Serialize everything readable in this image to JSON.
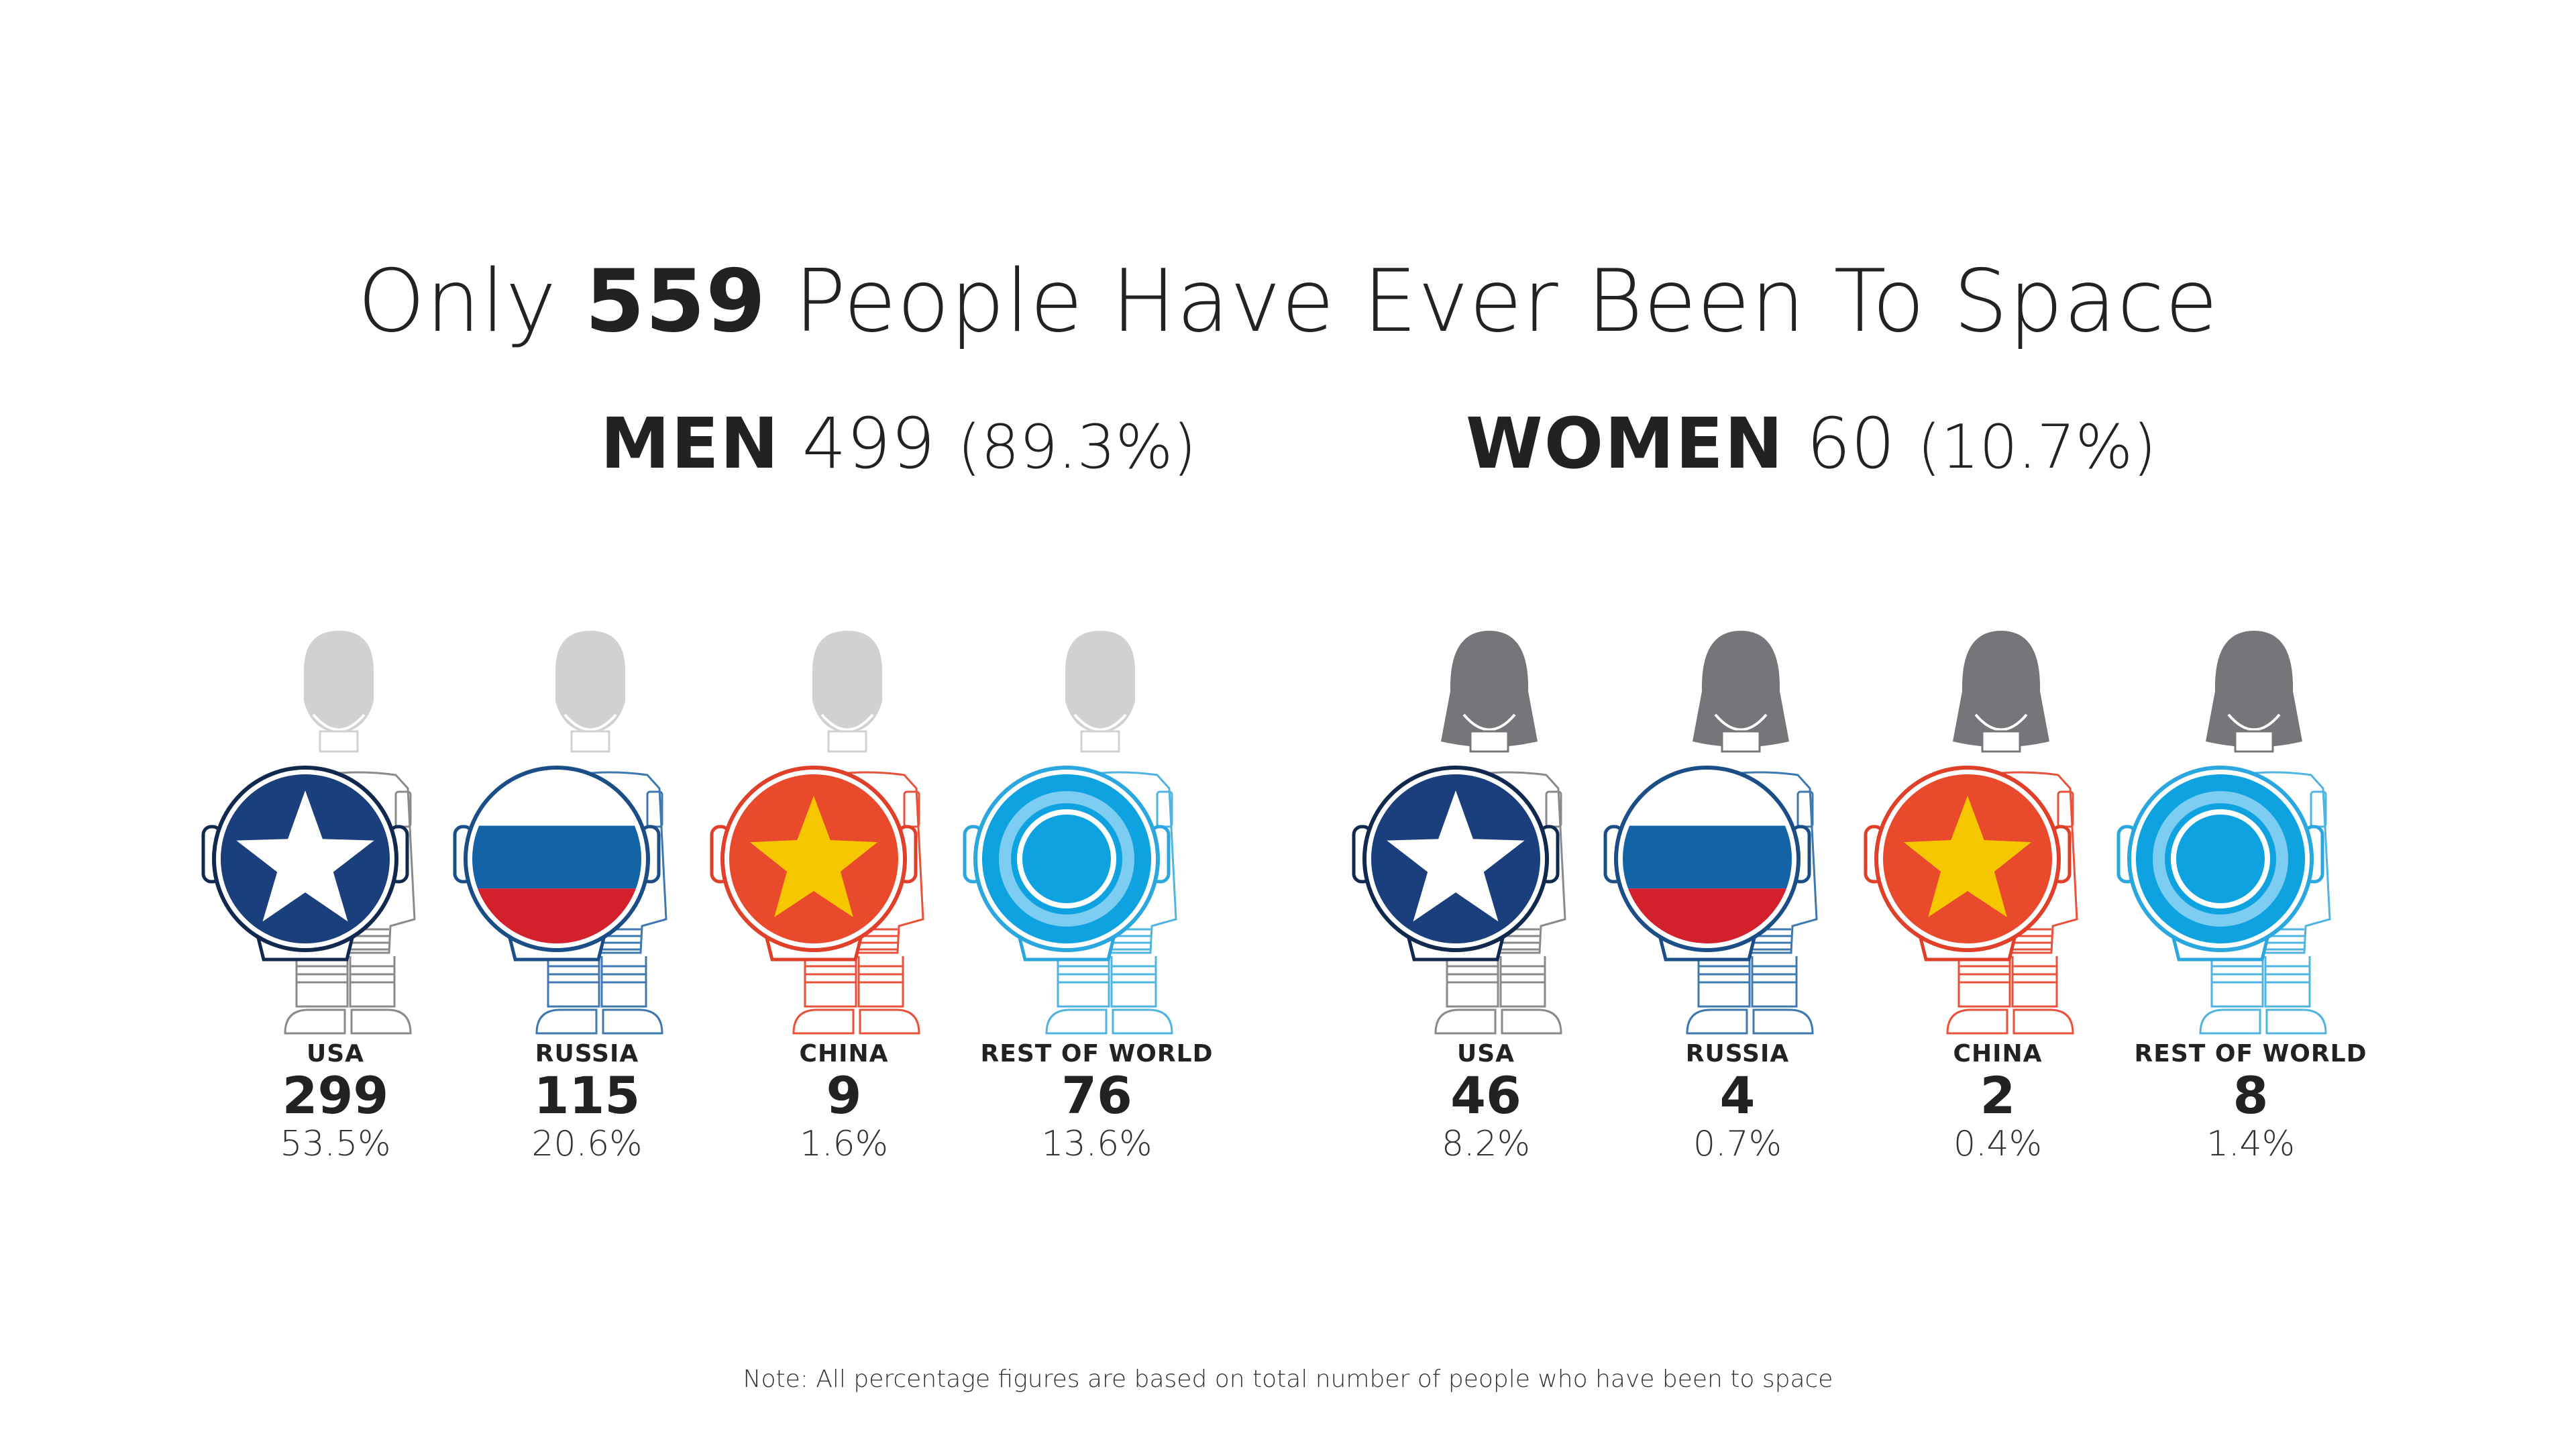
{
  "title": {
    "prefix": "Only",
    "number": "559",
    "suffix": "People Have Ever Been To Space"
  },
  "groups": [
    {
      "label": "MEN",
      "total": "499",
      "share": "(89.3%)",
      "head_color": "#d3d1cf",
      "items": [
        {
          "country": "USA",
          "count": "299",
          "share": "53.5%",
          "flag": "usa",
          "line_color": "#8a8a8a"
        },
        {
          "country": "RUSSIA",
          "count": "115",
          "share": "20.6%",
          "flag": "russia",
          "line_color": "#3d79b0"
        },
        {
          "country": "CHINA",
          "count": "9",
          "share": "1.6%",
          "flag": "china",
          "line_color": "#e8523b"
        },
        {
          "country": "REST OF WORLD",
          "count": "76",
          "share": "13.6%",
          "flag": "world",
          "line_color": "#4fb4e0"
        }
      ]
    },
    {
      "label": "WOMEN",
      "total": "60",
      "share": "(10.7%)",
      "head_color": "#77757a",
      "items": [
        {
          "country": "USA",
          "count": "46",
          "share": "8.2%",
          "flag": "usa",
          "line_color": "#8a8a8a"
        },
        {
          "country": "RUSSIA",
          "count": "4",
          "share": "0.7%",
          "flag": "russia",
          "line_color": "#3d79b0"
        },
        {
          "country": "CHINA",
          "count": "2",
          "share": "0.4%",
          "flag": "china",
          "line_color": "#e8523b"
        },
        {
          "country": "REST OF WORLD",
          "count": "8",
          "share": "1.4%",
          "flag": "world",
          "line_color": "#4fb4e0"
        }
      ]
    }
  ],
  "colors": {
    "usa_blue": "#1b3f7d",
    "usa_outline": "#12294f",
    "russia_white": "#ffffff",
    "russia_blue": "#1463a6",
    "russia_red": "#d4202c",
    "russia_outline": "#1b4e86",
    "china_red": "#ea4a2c",
    "china_star": "#f6c700",
    "china_outline": "#e0402a",
    "world_blue": "#0ea2e0",
    "world_light": "#7ccdf1",
    "world_outline": "#2ba7e0"
  },
  "note": "Note: All percentage figures are based on total number of people who have been to space"
}
